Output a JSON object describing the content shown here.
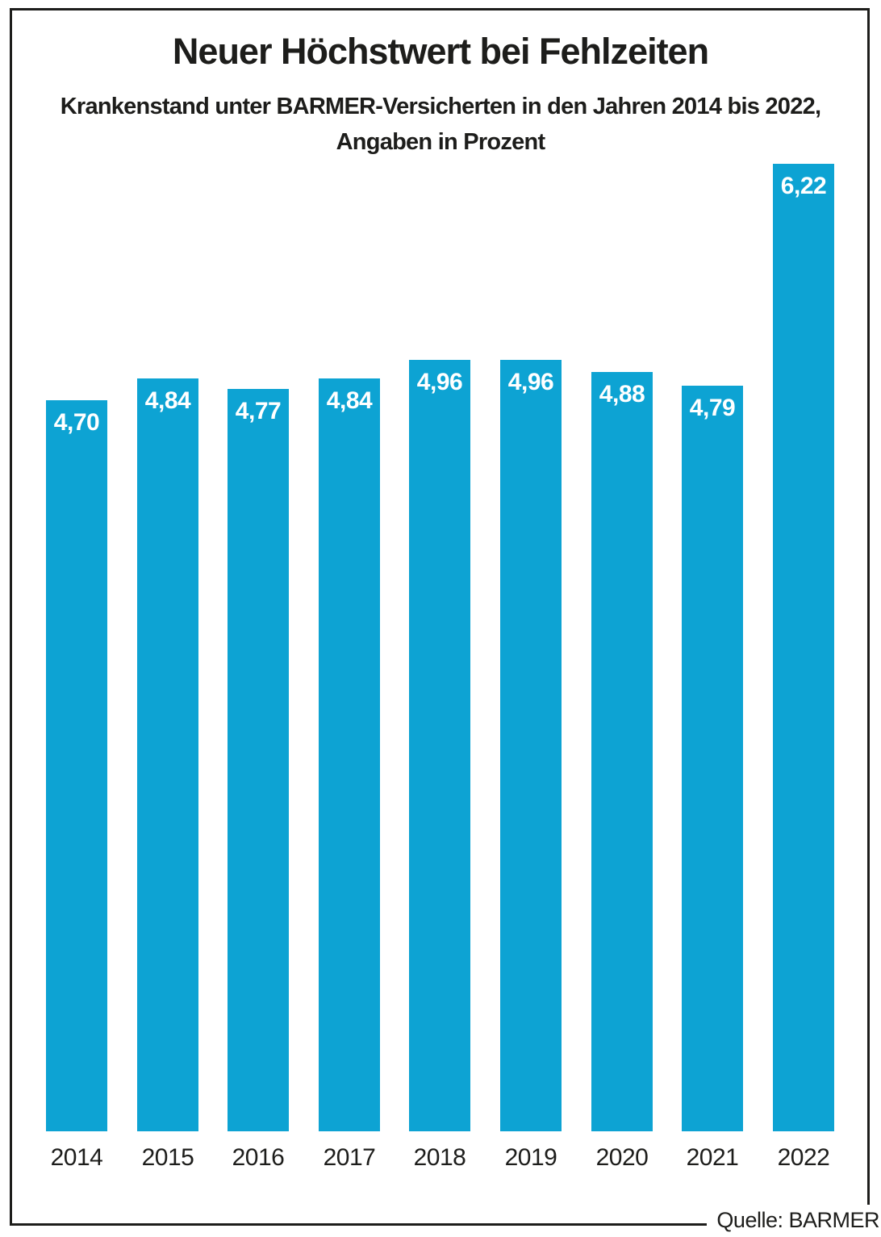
{
  "title": "Neuer Höchstwert bei Fehlzeiten",
  "subtitle": {
    "line1": "Krankenstand unter BARMER-Versicherten in den Jahren 2014 bis 2022,",
    "line2": "Angaben in Prozent"
  },
  "source": "Quelle: BARMER",
  "colors": {
    "bar": "#0da3d3",
    "frame": "#1d1d1b",
    "text": "#1d1d1b",
    "value_label": "#ffffff",
    "background": "#ffffff"
  },
  "chart_data": {
    "type": "bar",
    "title": "Neuer Höchstwert bei Fehlzeiten",
    "subtitle": "Krankenstand unter BARMER-Versicherten in den Jahren 2014 bis 2022, Angaben in Prozent",
    "source": "Quelle: BARMER",
    "categories": [
      "2014",
      "2015",
      "2016",
      "2017",
      "2018",
      "2019",
      "2020",
      "2021",
      "2022"
    ],
    "values": [
      4.7,
      4.84,
      4.77,
      4.84,
      4.96,
      4.96,
      4.88,
      4.79,
      6.22
    ],
    "value_labels": [
      "4,70",
      "4,84",
      "4,77",
      "4,84",
      "4,96",
      "4,96",
      "4,88",
      "4,79",
      "6,22"
    ],
    "xlabel": "",
    "ylabel": "",
    "unit": "Prozent",
    "ylim": [
      0,
      6.3
    ],
    "grid": false,
    "legend": false,
    "bar_color": "#0da3d3",
    "value_label_position": "inside-top",
    "value_label_color": "#ffffff"
  }
}
